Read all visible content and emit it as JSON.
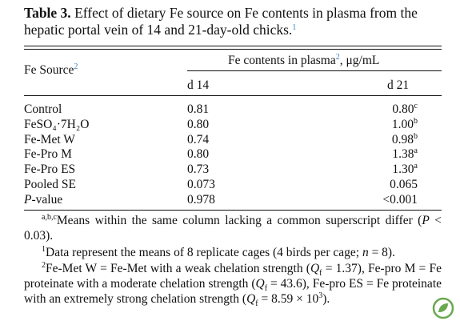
{
  "table_title": {
    "label": "Table 3.",
    "text": "Effect of dietary Fe source on Fe contents in plasma from the hepatic portal vein of 14 and 21-day-old chicks.",
    "note_mark": "1"
  },
  "header": {
    "row_label": "Fe Source",
    "row_label_mark": "2",
    "group": "Fe contents in plasma",
    "group_mark": "2",
    "group_unit": ", μg/mL",
    "columns": [
      "d 14",
      "d 21"
    ]
  },
  "rows": [
    {
      "source": "Control",
      "d14": "0.81",
      "d21": "0.80",
      "d21_sup": "c"
    },
    {
      "source": "FeSO₄·7H₂O",
      "d14": "0.80",
      "d21": "1.00",
      "d21_sup": "b"
    },
    {
      "source": "Fe-Met W",
      "d14": "0.74",
      "d21": "0.98",
      "d21_sup": "b"
    },
    {
      "source": "Fe-Pro M",
      "d14": "0.80",
      "d21": "1.38",
      "d21_sup": "a"
    },
    {
      "source": "Fe-Pro ES",
      "d14": "0.73",
      "d21": "1.30",
      "d21_sup": "a"
    },
    {
      "source": "Pooled SE",
      "d14": "0.073",
      "d21": "0.065"
    },
    {
      "source": {
        "italic": "P",
        "text": "-value"
      },
      "d14": "0.978",
      "d21": "<0.001"
    }
  ],
  "footnotes": [
    {
      "mark": "a,b,c",
      "parts": [
        {
          "text": "Means within the same column lacking a common superscript differ ("
        },
        {
          "text": "P",
          "style": "italic"
        },
        {
          "text": " < 0.03)."
        }
      ]
    },
    {
      "mark": "1",
      "parts": [
        {
          "text": "Data represent the means of 8 replicate cages (4 birds per cage; "
        },
        {
          "text": "n",
          "style": "italic"
        },
        {
          "text": " = 8)."
        }
      ]
    },
    {
      "mark": "2",
      "parts": [
        {
          "text": "Fe-Met W = Fe-Met with a weak chelation strength ("
        },
        {
          "text": "Q",
          "style": "italic"
        },
        {
          "text": "f",
          "style": "sub"
        },
        {
          "text": " = 1.37), Fe-pro M = Fe proteinate with a moderate chelation strength ("
        },
        {
          "text": "Q",
          "style": "italic"
        },
        {
          "text": "f",
          "style": "sub"
        },
        {
          "text": " = 43.6), Fe-pro ES = Fe proteinate with an extremely strong chelation strength ("
        },
        {
          "text": "Q",
          "style": "italic"
        },
        {
          "text": "f",
          "style": "sub"
        },
        {
          "text": " = 8.59 × 10"
        },
        {
          "text": "3",
          "style": "sup"
        },
        {
          "text": ")."
        }
      ]
    }
  ]
}
